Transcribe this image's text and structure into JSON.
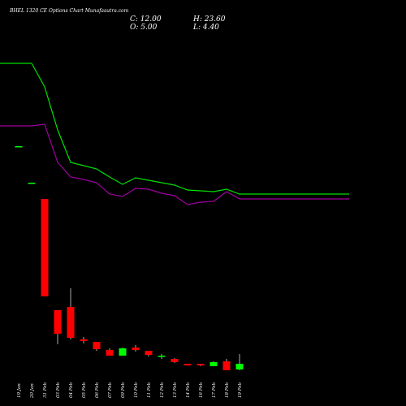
{
  "title": "BHEL 1320 CE Options Chart Munafasutra.com",
  "ohlc": {
    "close": "C: 12.00",
    "open": "O: 5.00",
    "high": "H: 23.60",
    "low": "L: 4.40"
  },
  "colors": {
    "up": "#00ff00",
    "down": "#ff0000",
    "ma_fast": "#00e000",
    "ma_slow": "#a000a0",
    "bg": "#000000",
    "text": "#ffffff"
  },
  "chart_data": {
    "type": "candlestick",
    "title": "BHEL 1320 CE Options Chart Munafasutra.com",
    "categories": [
      "19 Jan",
      "20 Jan",
      "31 Feb",
      "03 Feb",
      "04 Feb",
      "05 Feb",
      "06 Feb",
      "07 Feb",
      "09 Feb",
      "10 Feb",
      "11 Feb",
      "12 Feb",
      "13 Feb",
      "14 Feb",
      "16 Feb",
      "17 Feb",
      "18 Feb",
      "19 Feb"
    ],
    "candles": [
      {
        "date": "19 Jan",
        "open": 280,
        "high": 280,
        "low": 280,
        "close": 280
      },
      {
        "date": "20 Jan",
        "open": 235,
        "high": 235,
        "low": 235,
        "close": 235
      },
      {
        "date": "31 Feb",
        "open": 215,
        "high": 215,
        "low": 95,
        "close": 95
      },
      {
        "date": "03 Feb",
        "open": 78,
        "high": 78,
        "low": 36,
        "close": 49
      },
      {
        "date": "04 Feb",
        "open": 82,
        "high": 105,
        "low": 42,
        "close": 44
      },
      {
        "date": "05 Feb",
        "open": 42,
        "high": 45,
        "low": 37,
        "close": 40
      },
      {
        "date": "06 Feb",
        "open": 39,
        "high": 39,
        "low": 28,
        "close": 30
      },
      {
        "date": "07 Feb",
        "open": 29,
        "high": 31,
        "low": 25,
        "close": 22
      },
      {
        "date": "09 Feb",
        "open": 22,
        "high": 32,
        "low": 22,
        "close": 31
      },
      {
        "date": "10 Feb",
        "open": 32,
        "high": 35,
        "low": 27,
        "close": 29
      },
      {
        "date": "11 Feb",
        "open": 28,
        "high": 28,
        "low": 21,
        "close": 23
      },
      {
        "date": "12 Feb",
        "open": 21,
        "high": 24,
        "low": 18,
        "close": 22
      },
      {
        "date": "13 Feb",
        "open": 18,
        "high": 19,
        "low": 13,
        "close": 14
      },
      {
        "date": "14 Feb",
        "open": 12,
        "high": 12,
        "low": 10,
        "close": 10
      },
      {
        "date": "16 Feb",
        "open": 12,
        "high": 12,
        "low": 9,
        "close": 10
      },
      {
        "date": "17 Feb",
        "open": 9,
        "high": 15,
        "low": 9,
        "close": 14
      },
      {
        "date": "18 Feb",
        "open": 15,
        "high": 18,
        "low": 5,
        "close": 4
      },
      {
        "date": "19 Feb",
        "open": 5,
        "high": 24,
        "low": 4,
        "close": 12
      }
    ],
    "ma_fast": [
      382,
      382,
      353,
      300,
      260,
      256,
      252,
      242,
      233,
      241,
      238,
      235,
      232,
      226,
      225,
      224,
      227,
      221
    ],
    "ma_slow": [
      305,
      305,
      307,
      260,
      242,
      239,
      235,
      221,
      218,
      228,
      227,
      222,
      219,
      208,
      211,
      212,
      224,
      215
    ],
    "y_range": [
      0,
      400
    ]
  }
}
